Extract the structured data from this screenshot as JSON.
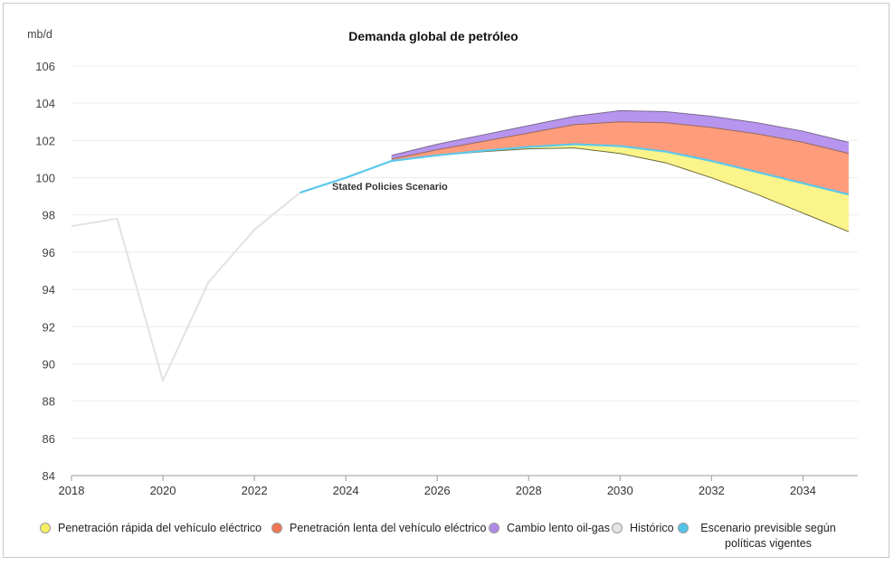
{
  "chart_data": {
    "type": "area",
    "title": "Demanda global de petróleo",
    "ylabel": "mb/d",
    "xlabel": "",
    "xlim": [
      2018,
      2035.2
    ],
    "ylim": [
      84,
      106
    ],
    "y_ticks": [
      84,
      86,
      88,
      90,
      92,
      94,
      96,
      98,
      100,
      102,
      104,
      106
    ],
    "x_ticks": [
      2018,
      2020,
      2022,
      2024,
      2026,
      2028,
      2030,
      2032,
      2034
    ],
    "grid": "horizontal",
    "legend_position": "bottom",
    "annotation": "Stated Policies Scenario",
    "series": [
      {
        "name": "Histórico",
        "kind": "line",
        "color": "#e2e2e2",
        "x": [
          2018,
          2019,
          2020,
          2021,
          2022,
          2023
        ],
        "values": [
          97.4,
          97.8,
          89.1,
          94.4,
          97.2,
          99.2
        ]
      },
      {
        "name": "Escenario previsible según políticas vigentes",
        "kind": "line",
        "color": "#5bc8ec",
        "x": [
          2023,
          2024,
          2025,
          2026,
          2027,
          2028,
          2029,
          2030,
          2031,
          2032,
          2033,
          2034,
          2035
        ],
        "values": [
          99.2,
          100.0,
          100.9,
          101.2,
          101.45,
          101.65,
          101.8,
          101.7,
          101.4,
          100.9,
          100.3,
          99.7,
          99.1
        ]
      },
      {
        "name": "Penetración rápida del vehículo eléctrico",
        "kind": "band",
        "color": "#fbf48a",
        "x": [
          2025,
          2026,
          2027,
          2028,
          2029,
          2030,
          2031,
          2032,
          2033,
          2034,
          2035
        ],
        "values": [
          100.9,
          101.2,
          101.4,
          101.55,
          101.6,
          101.3,
          100.8,
          100.0,
          99.1,
          98.1,
          97.1
        ]
      },
      {
        "name": "Penetración lenta del vehículo eléctrico",
        "kind": "band",
        "color": "#ff9c7c",
        "x": [
          2025,
          2026,
          2027,
          2028,
          2029,
          2030,
          2031,
          2032,
          2033,
          2034,
          2035
        ],
        "values": [
          101.0,
          101.5,
          101.95,
          102.4,
          102.85,
          103.0,
          102.95,
          102.7,
          102.35,
          101.9,
          101.3
        ]
      },
      {
        "name": "Cambio lento oil-gas",
        "kind": "band",
        "color": "#b794ee",
        "x": [
          2025,
          2026,
          2027,
          2028,
          2029,
          2030,
          2031,
          2032,
          2033,
          2034,
          2035
        ],
        "values": [
          101.2,
          101.8,
          102.3,
          102.8,
          103.3,
          103.6,
          103.55,
          103.3,
          102.95,
          102.5,
          101.9
        ]
      }
    ]
  },
  "legend": {
    "items": [
      {
        "label": "Penetración rápida del vehículo eléctrico",
        "color": "#f6ee62"
      },
      {
        "label": "Penetración lenta del vehículo eléctrico",
        "color": "#ef7651"
      },
      {
        "label": "Cambio lento oil-gas",
        "color": "#b08ae8"
      },
      {
        "label": "Histórico",
        "color": "#e4e4e4"
      },
      {
        "label": "Escenario previsible según políticas vigentes",
        "color": "#53c3ea"
      }
    ]
  }
}
